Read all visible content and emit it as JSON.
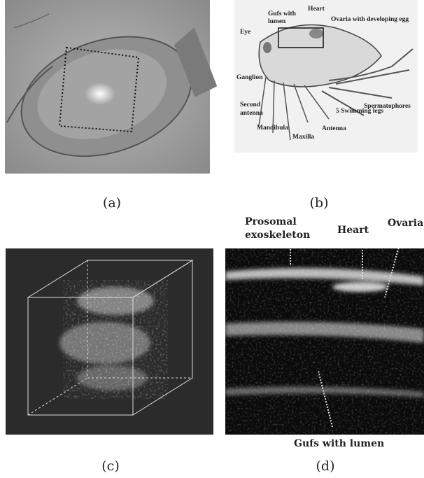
{
  "panels": [
    {
      "caption": "(a)"
    },
    {
      "caption": "(b)",
      "labels": [
        "Heart",
        "Gufs with",
        "lumen",
        "Ovaria with developing egg",
        "Eye",
        "Ganglion",
        "Second",
        "antenna",
        "Mandibula",
        "Maxilla",
        "Antenna",
        "5 Swimming legs",
        "Spermatophores"
      ]
    },
    {
      "caption": "(c)"
    },
    {
      "caption": "(d)",
      "labels": [
        "Prosomal",
        "exoskeleton",
        "Heart",
        "Ovaria",
        "Gufs with lumen"
      ]
    }
  ]
}
